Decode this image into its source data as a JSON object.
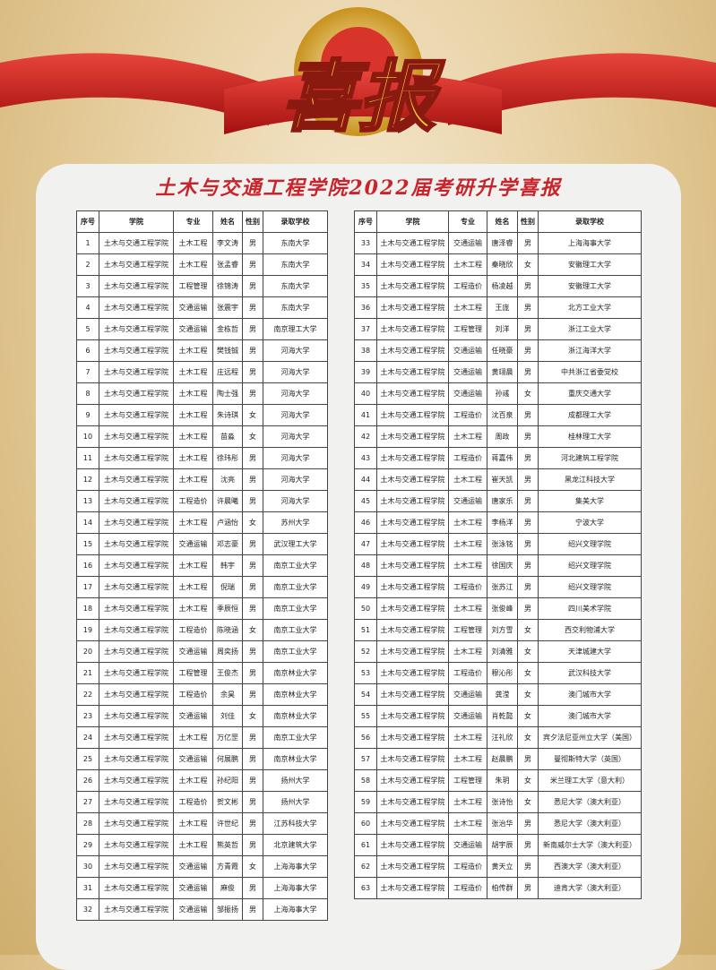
{
  "banner": {
    "title": "喜报"
  },
  "header": {
    "title": "土木与交通工程学院2022届考研升学喜报"
  },
  "tables": [
    {
      "columns": [
        "序号",
        "学院",
        "专业",
        "姓名",
        "性别",
        "录取学校"
      ],
      "rows": [
        [
          1,
          "土木与交通工程学院",
          "土木工程",
          "李文涛",
          "男",
          "东南大学"
        ],
        [
          2,
          "土木与交通工程学院",
          "土木工程",
          "张孟睿",
          "男",
          "东南大学"
        ],
        [
          3,
          "土木与交通工程学院",
          "工程管理",
          "徐锦涛",
          "男",
          "东南大学"
        ],
        [
          4,
          "土木与交通工程学院",
          "交通运输",
          "张震宇",
          "男",
          "东南大学"
        ],
        [
          5,
          "土木与交通工程学院",
          "交通运输",
          "金栋哲",
          "男",
          "南京理工大学"
        ],
        [
          6,
          "土木与交通工程学院",
          "土木工程",
          "樊钱铖",
          "男",
          "河海大学"
        ],
        [
          7,
          "土木与交通工程学院",
          "土木工程",
          "庄远程",
          "男",
          "河海大学"
        ],
        [
          8,
          "土木与交通工程学院",
          "土木工程",
          "陶士强",
          "男",
          "河海大学"
        ],
        [
          9,
          "土木与交通工程学院",
          "土木工程",
          "朱诗琪",
          "女",
          "河海大学"
        ],
        [
          10,
          "土木与交通工程学院",
          "土木工程",
          "苗淼",
          "女",
          "河海大学"
        ],
        [
          11,
          "土木与交通工程学院",
          "土木工程",
          "徐玮彤",
          "男",
          "河海大学"
        ],
        [
          12,
          "土木与交通工程学院",
          "土木工程",
          "沈亮",
          "男",
          "河海大学"
        ],
        [
          13,
          "土木与交通工程学院",
          "工程造价",
          "许晨曦",
          "男",
          "河海大学"
        ],
        [
          14,
          "土木与交通工程学院",
          "土木工程",
          "卢涵怡",
          "女",
          "苏州大学"
        ],
        [
          15,
          "土木与交通工程学院",
          "交通运输",
          "邓志豪",
          "男",
          "武汉理工大学"
        ],
        [
          16,
          "土木与交通工程学院",
          "土木工程",
          "韩宇",
          "男",
          "南京工业大学"
        ],
        [
          17,
          "土木与交通工程学院",
          "土木工程",
          "倪瑞",
          "男",
          "南京工业大学"
        ],
        [
          18,
          "土木与交通工程学院",
          "土木工程",
          "季辰恒",
          "男",
          "南京工业大学"
        ],
        [
          19,
          "土木与交通工程学院",
          "工程造价",
          "陈晓涵",
          "女",
          "南京工业大学"
        ],
        [
          20,
          "土木与交通工程学院",
          "交通运输",
          "周奕扬",
          "男",
          "南京工业大学"
        ],
        [
          21,
          "土木与交通工程学院",
          "工程管理",
          "王俊杰",
          "男",
          "南京林业大学"
        ],
        [
          22,
          "土木与交通工程学院",
          "工程造价",
          "余昊",
          "男",
          "南京林业大学"
        ],
        [
          23,
          "土木与交通工程学院",
          "交通运输",
          "刘佳",
          "女",
          "南京林业大学"
        ],
        [
          24,
          "土木与交通工程学院",
          "土木工程",
          "万亿罡",
          "男",
          "南京工业大学"
        ],
        [
          25,
          "土木与交通工程学院",
          "交通运输",
          "何展鹏",
          "男",
          "南京林业大学"
        ],
        [
          26,
          "土木与交通工程学院",
          "土木工程",
          "孙纪阳",
          "男",
          "扬州大学"
        ],
        [
          27,
          "土木与交通工程学院",
          "工程造价",
          "贺文彬",
          "男",
          "扬州大学"
        ],
        [
          28,
          "土木与交通工程学院",
          "土木工程",
          "许世纪",
          "男",
          "江苏科技大学"
        ],
        [
          29,
          "土木与交通工程学院",
          "土木工程",
          "熊英哲",
          "男",
          "北京建筑大学"
        ],
        [
          30,
          "土木与交通工程学院",
          "交通运输",
          "方青霞",
          "女",
          "上海海事大学"
        ],
        [
          31,
          "土木与交通工程学院",
          "交通运输",
          "麻俊",
          "男",
          "上海海事大学"
        ],
        [
          32,
          "土木与交通工程学院",
          "交通运输",
          "邹振扬",
          "男",
          "上海海事大学"
        ]
      ]
    },
    {
      "columns": [
        "序号",
        "学院",
        "专业",
        "姓名",
        "性别",
        "录取学校"
      ],
      "rows": [
        [
          33,
          "土木与交通工程学院",
          "交通运输",
          "唐泽睿",
          "男",
          "上海海事大学"
        ],
        [
          34,
          "土木与交通工程学院",
          "土木工程",
          "秦晓欣",
          "女",
          "安徽理工大学"
        ],
        [
          35,
          "土木与交通工程学院",
          "工程造价",
          "杨凌越",
          "男",
          "安徽理工大学"
        ],
        [
          36,
          "土木与交通工程学院",
          "土木工程",
          "王庞",
          "男",
          "北方工业大学"
        ],
        [
          37,
          "土木与交通工程学院",
          "工程管理",
          "刘洋",
          "男",
          "浙江工业大学"
        ],
        [
          38,
          "土木与交通工程学院",
          "交通运输",
          "任晓豪",
          "男",
          "浙江海洋大学"
        ],
        [
          39,
          "土木与交通工程学院",
          "交通运输",
          "黄翊晨",
          "男",
          "中共浙江省委党校"
        ],
        [
          40,
          "土木与交通工程学院",
          "交通运输",
          "孙彧",
          "女",
          "重庆交通大学"
        ],
        [
          41,
          "土木与交通工程学院",
          "工程造价",
          "沈百泉",
          "男",
          "成都理工大学"
        ],
        [
          42,
          "土木与交通工程学院",
          "土木工程",
          "周政",
          "男",
          "桂林理工大学"
        ],
        [
          43,
          "土木与交通工程学院",
          "工程造价",
          "蒋嘉伟",
          "男",
          "河北建筑工程学院"
        ],
        [
          44,
          "土木与交通工程学院",
          "土木工程",
          "崔天凯",
          "男",
          "黑龙江科技大学"
        ],
        [
          45,
          "土木与交通工程学院",
          "交通运输",
          "唐家乐",
          "男",
          "集美大学"
        ],
        [
          46,
          "土木与交通工程学院",
          "土木工程",
          "李杨洋",
          "男",
          "宁波大学"
        ],
        [
          47,
          "土木与交通工程学院",
          "土木工程",
          "张泳铭",
          "男",
          "绍兴文理学院"
        ],
        [
          48,
          "土木与交通工程学院",
          "土木工程",
          "徐国庆",
          "男",
          "绍兴文理学院"
        ],
        [
          49,
          "土木与交通工程学院",
          "工程造价",
          "张苏江",
          "男",
          "绍兴文理学院"
        ],
        [
          50,
          "土木与交通工程学院",
          "土木工程",
          "张俊峰",
          "男",
          "四川美术学院"
        ],
        [
          51,
          "土木与交通工程学院",
          "工程管理",
          "刘方雪",
          "女",
          "西交利物浦大学"
        ],
        [
          52,
          "土木与交通工程学院",
          "土木工程",
          "刘清雅",
          "女",
          "天津城建大学"
        ],
        [
          53,
          "土木与交通工程学院",
          "工程造价",
          "穆沁彤",
          "女",
          "武汉科技大学"
        ],
        [
          54,
          "土木与交通工程学院",
          "交通运输",
          "龚滢",
          "女",
          "澳门城市大学"
        ],
        [
          55,
          "土木与交通工程学院",
          "交通运输",
          "肖乾懿",
          "女",
          "澳门城市大学"
        ],
        [
          56,
          "土木与交通工程学院",
          "土木工程",
          "汪礼欣",
          "女",
          "宾夕法尼亚州立大学（美国）"
        ],
        [
          57,
          "土木与交通工程学院",
          "土木工程",
          "赵晨鹏",
          "男",
          "曼彻斯特大学（英国）"
        ],
        [
          58,
          "土木与交通工程学院",
          "工程管理",
          "朱玥",
          "女",
          "米兰理工大学（意大利）"
        ],
        [
          59,
          "土木与交通工程学院",
          "土木工程",
          "张诗怡",
          "女",
          "悉尼大学（澳大利亚）"
        ],
        [
          60,
          "土木与交通工程学院",
          "土木工程",
          "张治华",
          "男",
          "悉尼大学（澳大利亚）"
        ],
        [
          61,
          "土木与交通工程学院",
          "交通运输",
          "胡宇辰",
          "男",
          "新南威尔士大学（澳大利亚）"
        ],
        [
          62,
          "土木与交通工程学院",
          "工程造价",
          "黄天立",
          "男",
          "西澳大学（澳大利亚）"
        ],
        [
          63,
          "土木与交通工程学院",
          "工程造价",
          "柏传群",
          "男",
          "迪肯大学（澳大利亚）"
        ]
      ]
    }
  ]
}
